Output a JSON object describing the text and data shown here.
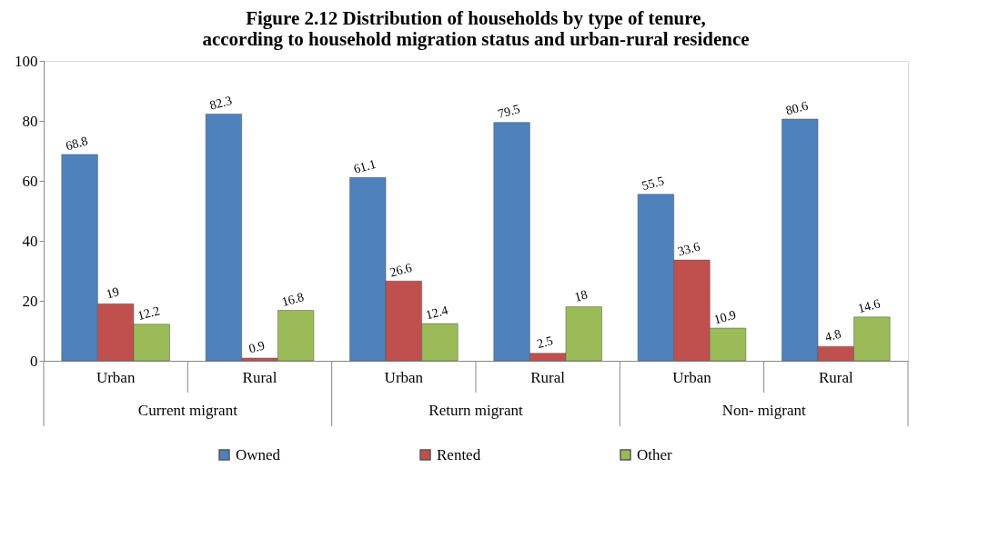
{
  "chart_data": {
    "type": "bar",
    "title": "Figure 2.12   Distribution of households by type of tenure,\naccording to household migration status and urban-rural residence",
    "categories": [
      "Urban",
      "Rural",
      "Urban",
      "Rural",
      "Urban",
      "Rural"
    ],
    "series": [
      {
        "name": "Owned",
        "color": "#4f81bd",
        "values": [
          68.8,
          82.3,
          61.1,
          79.5,
          55.5,
          80.6
        ]
      },
      {
        "name": "Rented",
        "color": "#c0504d",
        "values": [
          19,
          0.9,
          26.6,
          2.5,
          33.6,
          4.8
        ]
      },
      {
        "name": "Other",
        "color": "#9bbb59",
        "values": [
          12.2,
          16.8,
          12.4,
          18,
          10.9,
          14.6
        ]
      }
    ],
    "annotations": [
      "Current migrant",
      "Return migrant",
      "Non- migrant"
    ],
    "ylim": [
      0,
      100
    ],
    "yticks": [
      0,
      20,
      40,
      60,
      80,
      100
    ],
    "grid": false,
    "legend": "bottom",
    "data_labels": true
  }
}
